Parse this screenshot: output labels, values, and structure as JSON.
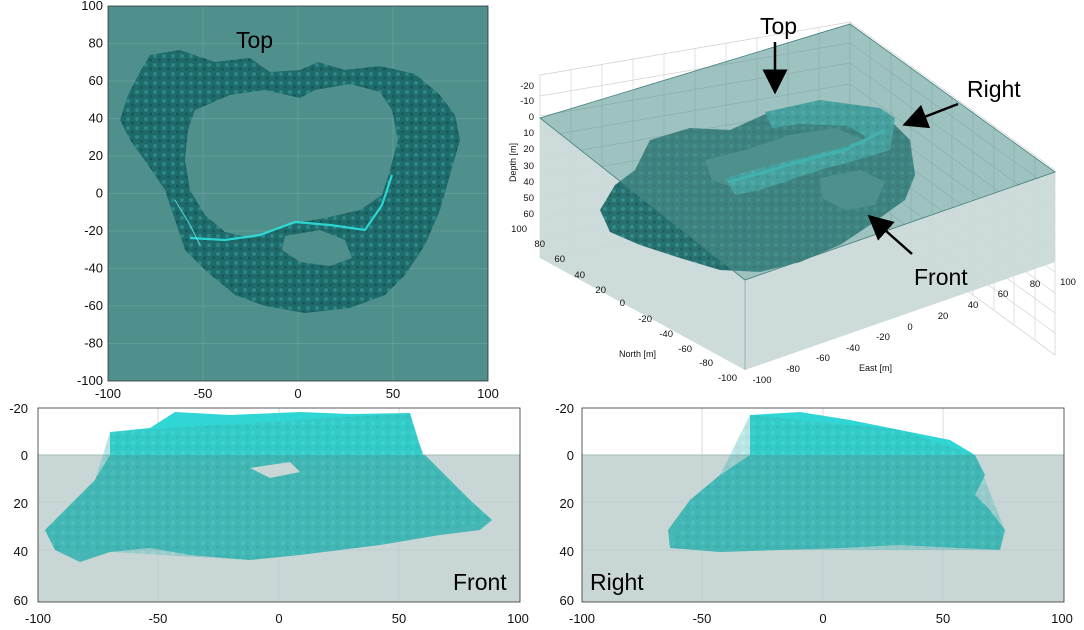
{
  "colors": {
    "water_dark": "#4f908c",
    "water_light": "#c8d7d6",
    "coral_dark": "#1f6b6b",
    "coral_bright": "#2ee0de",
    "arrow": "#000000"
  },
  "chart_data": [
    {
      "panel": "top-view",
      "type": "other",
      "label": "Top",
      "xticks": [
        "-100",
        "-50",
        "0",
        "50",
        "100"
      ],
      "yticks": [
        "100",
        "80",
        "60",
        "40",
        "20",
        "0",
        "-20",
        "-40",
        "-60",
        "-80",
        "-100"
      ],
      "xlim": [
        -100,
        100
      ],
      "ylim": [
        -100,
        100
      ],
      "grid": true
    },
    {
      "panel": "3d-view",
      "type": "other",
      "zlabel": "Depth [m]",
      "ylabel": "North [m]",
      "xlabel": "East [m]",
      "zticks": [
        "-20",
        "-10",
        "0",
        "10",
        "20",
        "30",
        "40",
        "50",
        "60"
      ],
      "north_ticks": [
        "100",
        "80",
        "60",
        "40",
        "20",
        "0",
        "-20",
        "-40",
        "-60",
        "-80",
        "-100"
      ],
      "east_ticks": [
        "-100",
        "-80",
        "-60",
        "-40",
        "-20",
        "0",
        "20",
        "40",
        "60",
        "80",
        "100"
      ],
      "annotations": [
        "Top",
        "Right",
        "Front"
      ],
      "grid": true
    },
    {
      "panel": "front-view",
      "type": "other",
      "label": "Front",
      "xticks": [
        "-100",
        "-50",
        "0",
        "50",
        "100"
      ],
      "yticks": [
        "-20",
        "0",
        "20",
        "40",
        "60"
      ],
      "xlim": [
        -100,
        100
      ],
      "ylim": [
        60,
        -20
      ],
      "water_surface_depth": 0
    },
    {
      "panel": "right-view",
      "type": "other",
      "label": "Right",
      "xticks": [
        "-100",
        "-50",
        "0",
        "50",
        "100"
      ],
      "yticks": [
        "-20",
        "0",
        "20",
        "40",
        "60"
      ],
      "xlim": [
        -100,
        100
      ],
      "ylim": [
        60,
        -20
      ],
      "water_surface_depth": 0
    }
  ]
}
